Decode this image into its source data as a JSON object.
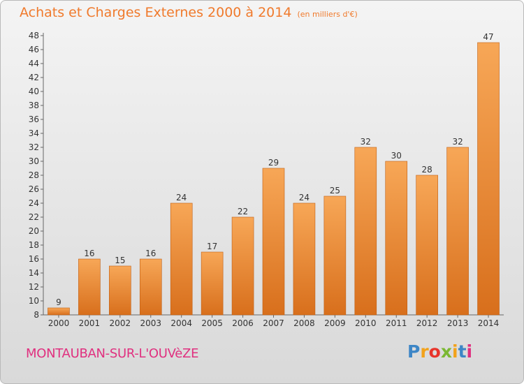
{
  "header": {
    "title": "Achats et Charges Externes 2000 à 2014",
    "unit": "(en milliers d'€)"
  },
  "footer": {
    "town": "MONTAUBAN-SUR-L'OUVèZE",
    "logo": {
      "letters": [
        "P",
        "r",
        "o",
        "x",
        "i",
        "t",
        "i"
      ],
      "colors": [
        "#3d86c6",
        "#f2a21b",
        "#e8342b",
        "#7bb833",
        "#f2a21b",
        "#3d86c6",
        "#e0307f"
      ]
    }
  },
  "colors": {
    "bar_top": "#f7a757",
    "bar_bottom": "#d86f1c",
    "bar_edge": "#c05f14",
    "text": "#333333"
  },
  "chart_data": {
    "type": "bar",
    "title": "Achats et Charges Externes 2000 à 2014",
    "xlabel": "",
    "ylabel": "",
    "categories": [
      "2000",
      "2001",
      "2002",
      "2003",
      "2004",
      "2005",
      "2006",
      "2007",
      "2008",
      "2009",
      "2010",
      "2011",
      "2012",
      "2013",
      "2014"
    ],
    "values": [
      9,
      16,
      15,
      16,
      24,
      17,
      22,
      29,
      24,
      25,
      32,
      30,
      28,
      32,
      47
    ],
    "ylim": [
      8,
      48
    ],
    "yticks": [
      8,
      10,
      12,
      14,
      16,
      18,
      20,
      22,
      24,
      26,
      28,
      30,
      32,
      34,
      36,
      38,
      40,
      42,
      44,
      46,
      48
    ],
    "grid": false,
    "data_labels": true
  }
}
